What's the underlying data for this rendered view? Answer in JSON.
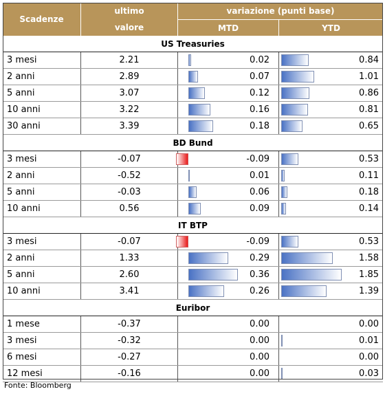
{
  "header": {
    "scadenze": "Scadenze",
    "ultimo_line1": "ultimo",
    "ultimo_line2": "valore",
    "variazione": "variazione (punti base)",
    "mtd": "MTD",
    "ytd": "YTD"
  },
  "sections": [
    {
      "title": "US Treasuries",
      "rows": [
        {
          "label": "3 mesi",
          "value": "2.21",
          "mtd": "0.02",
          "ytd": "0.84",
          "mtd_num": 0.02,
          "ytd_num": 0.84
        },
        {
          "label": "2 anni",
          "value": "2.89",
          "mtd": "0.07",
          "ytd": "1.01",
          "mtd_num": 0.07,
          "ytd_num": 1.01
        },
        {
          "label": "5 anni",
          "value": "3.07",
          "mtd": "0.12",
          "ytd": "0.86",
          "mtd_num": 0.12,
          "ytd_num": 0.86
        },
        {
          "label": "10 anni",
          "value": "3.22",
          "mtd": "0.16",
          "ytd": "0.81",
          "mtd_num": 0.16,
          "ytd_num": 0.81
        },
        {
          "label": "30 anni",
          "value": "3.39",
          "mtd": "0.18",
          "ytd": "0.65",
          "mtd_num": 0.18,
          "ytd_num": 0.65
        }
      ]
    },
    {
      "title": "BD Bund",
      "rows": [
        {
          "label": "3 mesi",
          "value": "-0.07",
          "mtd": "-0.09",
          "ytd": "0.53",
          "mtd_num": -0.09,
          "ytd_num": 0.53
        },
        {
          "label": "2 anni",
          "value": "-0.52",
          "mtd": "0.01",
          "ytd": "0.11",
          "mtd_num": 0.01,
          "ytd_num": 0.11
        },
        {
          "label": "5 anni",
          "value": "-0.03",
          "mtd": "0.06",
          "ytd": "0.18",
          "mtd_num": 0.06,
          "ytd_num": 0.18
        },
        {
          "label": "10 anni",
          "value": "0.56",
          "mtd": "0.09",
          "ytd": "0.14",
          "mtd_num": 0.09,
          "ytd_num": 0.14
        }
      ]
    },
    {
      "title": "IT BTP",
      "rows": [
        {
          "label": "3 mesi",
          "value": "-0.07",
          "mtd": "-0.09",
          "ytd": "0.53",
          "mtd_num": -0.09,
          "ytd_num": 0.53
        },
        {
          "label": "2 anni",
          "value": "1.33",
          "mtd": "0.29",
          "ytd": "1.58",
          "mtd_num": 0.29,
          "ytd_num": 1.58
        },
        {
          "label": "5 anni",
          "value": "2.60",
          "mtd": "0.36",
          "ytd": "1.85",
          "mtd_num": 0.36,
          "ytd_num": 1.85
        },
        {
          "label": "10 anni",
          "value": "3.41",
          "mtd": "0.26",
          "ytd": "1.39",
          "mtd_num": 0.26,
          "ytd_num": 1.39
        }
      ]
    },
    {
      "title": "Euribor",
      "rows": [
        {
          "label": "1 mese",
          "value": "-0.37",
          "mtd": "0.00",
          "ytd": "0.00",
          "mtd_num": 0.0,
          "ytd_num": 0.0
        },
        {
          "label": "3 mesi",
          "value": "-0.32",
          "mtd": "0.00",
          "ytd": "0.01",
          "mtd_num": 0.0,
          "ytd_num": 0.01
        },
        {
          "label": "6 mesi",
          "value": "-0.27",
          "mtd": "0.00",
          "ytd": "0.00",
          "mtd_num": 0.0,
          "ytd_num": 0.0
        },
        {
          "label": "12 mesi",
          "value": "-0.16",
          "mtd": "0.00",
          "ytd": "0.03",
          "mtd_num": 0.0,
          "ytd_num": 0.03
        }
      ]
    }
  ],
  "colors": {
    "header_bg": "#b8955a",
    "bar_positive": "#4a72c4",
    "bar_negative": "#e81a1a"
  },
  "footer": "Fonte: Bloomberg"
}
